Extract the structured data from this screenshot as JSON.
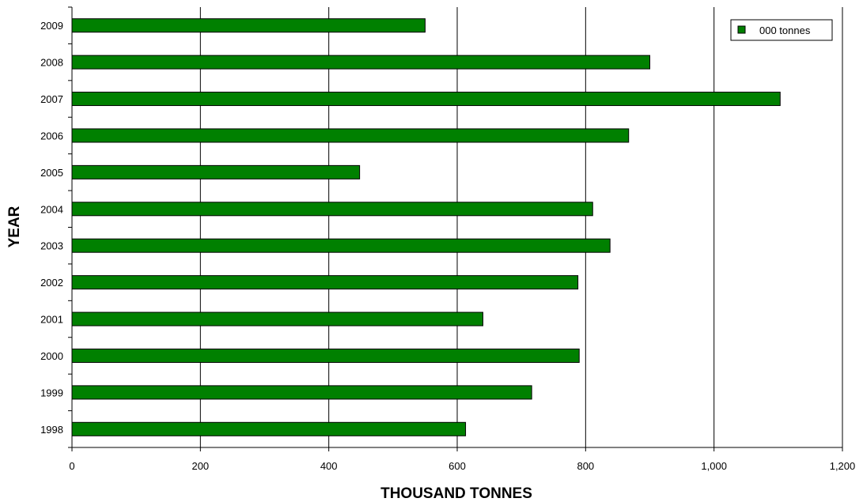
{
  "chart_data": {
    "type": "bar",
    "orientation": "horizontal",
    "categories": [
      "1998",
      "1999",
      "2000",
      "2001",
      "2002",
      "2003",
      "2004",
      "2005",
      "2006",
      "2007",
      "2008",
      "2009"
    ],
    "series": [
      {
        "name": "000 tonnes",
        "color": "#008000",
        "values": [
          613,
          716,
          790,
          640,
          788,
          838,
          811,
          448,
          867,
          1103,
          900,
          550
        ]
      }
    ],
    "xlabel": "THOUSAND TONNES",
    "ylabel": "YEAR",
    "xlim": [
      0,
      1200
    ],
    "xticks": [
      0,
      200,
      400,
      600,
      800,
      1000,
      1200
    ],
    "xtick_labels": [
      "0",
      "200",
      "400",
      "600",
      "800",
      "1,000",
      "1,200"
    ],
    "grid": "vertical",
    "legend_position": "top-right"
  }
}
